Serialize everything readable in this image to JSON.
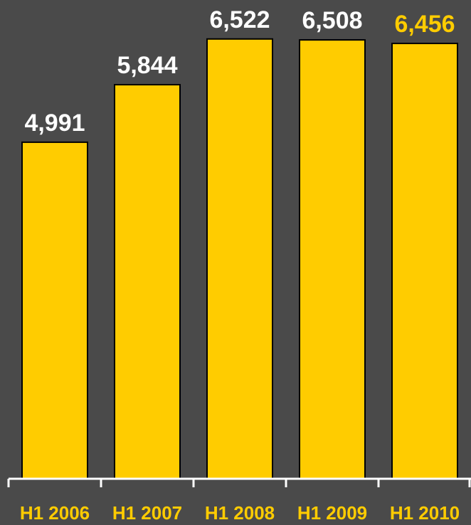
{
  "chart_data": {
    "type": "bar",
    "categories": [
      "H1 2006",
      "H1 2007",
      "H1 2008",
      "H1 2009",
      "H1 2010"
    ],
    "values": [
      4991,
      5844,
      6522,
      6508,
      6456
    ],
    "value_labels": [
      "4,991",
      "5,844",
      "6,522",
      "6,508",
      "6,456"
    ],
    "title": "",
    "xlabel": "",
    "ylabel": "",
    "ylim": [
      0,
      7100
    ],
    "grid": false,
    "highlight_index": 4,
    "colors": {
      "background": "#4a4a4a",
      "bar": "#ffcc00",
      "bar_outline": "#000000",
      "value_label": "#ffffff",
      "highlight_label": "#ffcc00",
      "category_label": "#ffcc00",
      "axis": "#ffffff"
    }
  }
}
